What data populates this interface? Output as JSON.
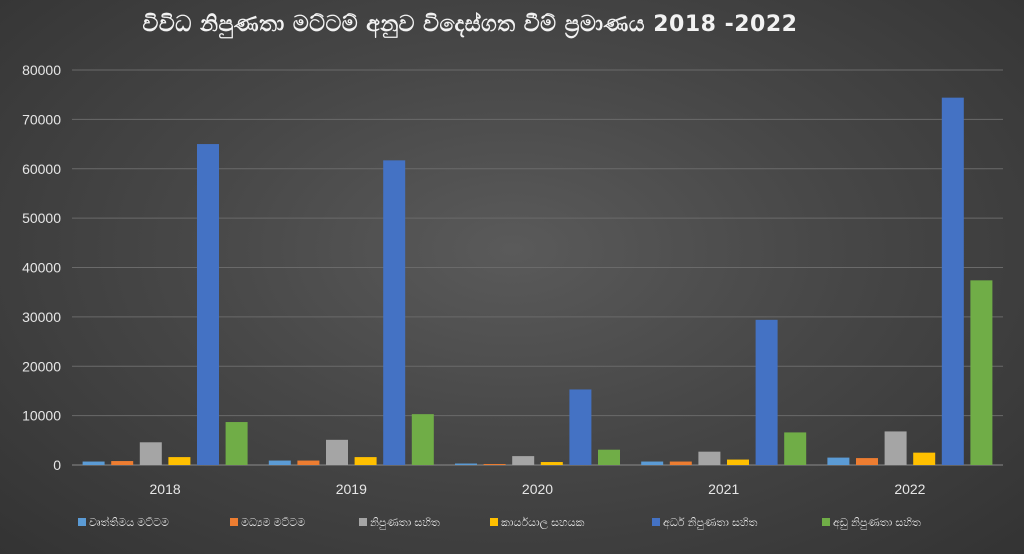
{
  "chart_data": {
    "type": "bar",
    "title": "විවිධ නිපුණතා මට්ටම් අනුව විදෙස්ගත වීම් ප්‍රමාණය 2018 -2022",
    "xlabel": "",
    "ylabel": "",
    "categories": [
      "2018",
      "2019",
      "2020",
      "2021",
      "2022"
    ],
    "ylim": [
      0,
      80000
    ],
    "yticks": [
      "0",
      "10000",
      "20000",
      "30000",
      "40000",
      "50000",
      "60000",
      "70000",
      "80000"
    ],
    "grid": true,
    "legend_position": "bottom",
    "series": [
      {
        "name": "වෘත්තිමය මට්ටම",
        "color": "#5b9bd5",
        "values": [
          700,
          900,
          300,
          700,
          1500
        ]
      },
      {
        "name": "මධ්‍යම මට්ටම",
        "color": "#ed7d31",
        "values": [
          800,
          900,
          200,
          700,
          1400
        ]
      },
      {
        "name": "නිපුණතා සහිත",
        "color": "#a5a5a5",
        "values": [
          4600,
          5100,
          1800,
          2700,
          6800
        ]
      },
      {
        "name": "කාර්යයාල සහයක",
        "color": "#ffc000",
        "values": [
          1600,
          1600,
          600,
          1100,
          2500
        ]
      },
      {
        "name": "අර්ධ නිපුණතා සහිත",
        "color": "#4472c4",
        "values": [
          65000,
          61700,
          15300,
          29400,
          74400
        ]
      },
      {
        "name": "අඩු නිපුණතා සහිත",
        "color": "#70ad47",
        "values": [
          8700,
          10300,
          3100,
          6600,
          37400
        ]
      }
    ]
  }
}
